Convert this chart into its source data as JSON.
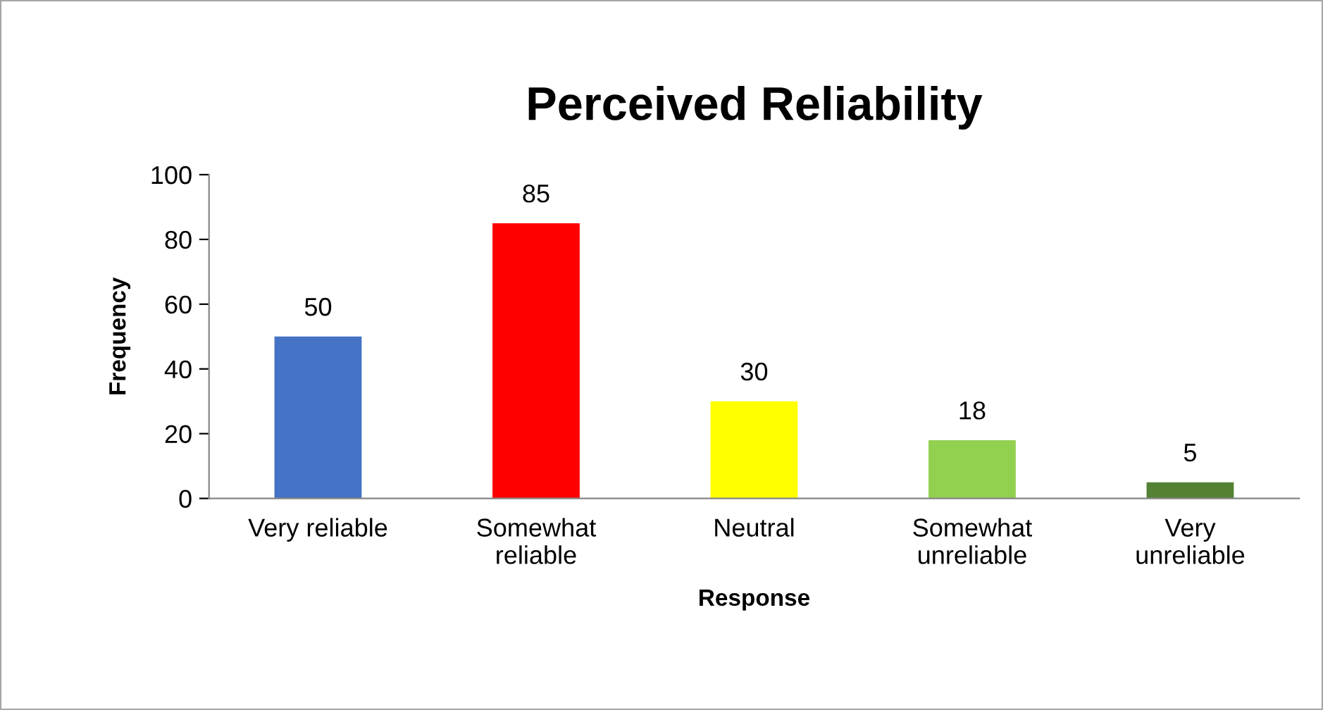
{
  "chart_data": {
    "type": "bar",
    "title": "Perceived Reliability",
    "xlabel": "Response",
    "ylabel": "Frequency",
    "categories": [
      "Very reliable",
      "Somewhat reliable",
      "Neutral",
      "Somewhat unreliable",
      "Very unreliable"
    ],
    "values": [
      50,
      85,
      30,
      18,
      5
    ],
    "colors": [
      "#4472c4",
      "#ff0000",
      "#ffff00",
      "#92d050",
      "#548235"
    ],
    "ylim": [
      0,
      100
    ],
    "yticks": [
      0,
      20,
      40,
      60,
      80,
      100
    ],
    "data_labels": true,
    "grid": false,
    "legend": false
  }
}
